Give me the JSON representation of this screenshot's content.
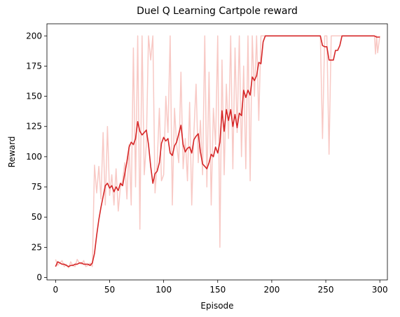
{
  "chart_data": {
    "type": "line",
    "title": "Duel Q Learning Cartpole reward",
    "xlabel": "Episode",
    "ylabel": "Reward",
    "xlim": [
      -8,
      307
    ],
    "ylim": [
      -2,
      210
    ],
    "xticks": [
      0,
      50,
      100,
      150,
      200,
      250,
      300
    ],
    "yticks": [
      0,
      25,
      50,
      75,
      100,
      125,
      150,
      175,
      200
    ],
    "grid": false,
    "legend": "none",
    "series": [
      {
        "style": "raw",
        "color": "#f5b7b2",
        "x": [
          0,
          2,
          4,
          6,
          8,
          10,
          12,
          14,
          16,
          18,
          20,
          22,
          24,
          26,
          28,
          30,
          32,
          34,
          36,
          38,
          40,
          42,
          44,
          46,
          48,
          50,
          52,
          54,
          56,
          58,
          60,
          62,
          64,
          66,
          68,
          70,
          72,
          74,
          76,
          78,
          80,
          82,
          84,
          86,
          88,
          90,
          92,
          94,
          96,
          98,
          100,
          102,
          104,
          106,
          108,
          110,
          112,
          114,
          116,
          118,
          120,
          122,
          124,
          126,
          128,
          130,
          132,
          134,
          136,
          138,
          140,
          142,
          144,
          146,
          148,
          150,
          152,
          154,
          156,
          158,
          160,
          162,
          164,
          166,
          168,
          170,
          172,
          174,
          176,
          178,
          180,
          182,
          184,
          186,
          188,
          190,
          192,
          194,
          196,
          198,
          200,
          210,
          220,
          230,
          240,
          245,
          247,
          249,
          251,
          253,
          255,
          257,
          260,
          265,
          270,
          280,
          290,
          295,
          296,
          297,
          298,
          300
        ],
        "y": [
          15,
          10,
          12,
          14,
          9,
          11,
          8,
          13,
          10,
          9,
          15,
          12,
          11,
          14,
          9,
          10,
          12,
          9,
          93,
          70,
          92,
          65,
          120,
          60,
          125,
          68,
          85,
          60,
          90,
          55,
          75,
          80,
          95,
          65,
          110,
          60,
          190,
          75,
          200,
          40,
          200,
          85,
          110,
          200,
          180,
          200,
          70,
          95,
          140,
          80,
          85,
          150,
          120,
          200,
          60,
          140,
          110,
          95,
          170,
          90,
          115,
          80,
          145,
          60,
          120,
          160,
          95,
          130,
          85,
          200,
          75,
          170,
          60,
          140,
          110,
          200,
          25,
          180,
          85,
          160,
          115,
          200,
          90,
          190,
          120,
          200,
          100,
          175,
          90,
          200,
          80,
          200,
          150,
          200,
          130,
          200,
          200,
          200,
          200,
          200,
          200,
          200,
          200,
          200,
          200,
          200,
          115,
          200,
          200,
          102,
          200,
          200,
          200,
          200,
          200,
          200,
          200,
          200,
          185,
          200,
          186,
          200
        ]
      },
      {
        "style": "smoothed",
        "color": "#d62728",
        "x": [
          0,
          2,
          4,
          6,
          8,
          10,
          12,
          14,
          16,
          18,
          20,
          22,
          24,
          26,
          28,
          30,
          32,
          34,
          36,
          38,
          40,
          42,
          44,
          46,
          48,
          50,
          52,
          54,
          56,
          58,
          60,
          62,
          64,
          66,
          68,
          70,
          72,
          74,
          76,
          78,
          80,
          82,
          84,
          86,
          88,
          90,
          92,
          94,
          96,
          98,
          100,
          102,
          104,
          106,
          108,
          110,
          112,
          114,
          116,
          118,
          120,
          122,
          124,
          126,
          128,
          130,
          132,
          134,
          136,
          138,
          140,
          142,
          144,
          146,
          148,
          150,
          152,
          154,
          156,
          158,
          160,
          162,
          164,
          166,
          168,
          170,
          172,
          174,
          176,
          178,
          180,
          182,
          184,
          186,
          188,
          190,
          192,
          194,
          196,
          198,
          200,
          210,
          220,
          230,
          240,
          245,
          247,
          249,
          251,
          253,
          255,
          257,
          259,
          261,
          263,
          265,
          270,
          280,
          290,
          295,
          297,
          300
        ],
        "y": [
          9,
          13,
          12,
          11,
          11,
          10,
          9,
          10,
          10,
          11,
          11,
          12,
          12,
          11,
          11,
          11,
          10,
          12,
          20,
          35,
          48,
          58,
          67,
          76,
          78,
          74,
          76,
          71,
          75,
          72,
          78,
          76,
          86,
          96,
          108,
          112,
          110,
          115,
          129,
          121,
          118,
          120,
          122,
          110,
          92,
          78,
          86,
          88,
          95,
          111,
          116,
          113,
          115,
          103,
          101,
          109,
          112,
          119,
          126,
          110,
          104,
          107,
          108,
          103,
          114,
          117,
          119,
          104,
          94,
          92,
          90,
          95,
          102,
          100,
          108,
          103,
          112,
          138,
          121,
          139,
          130,
          139,
          125,
          135,
          124,
          136,
          134,
          155,
          149,
          155,
          151,
          166,
          163,
          167,
          178,
          177,
          195,
          200,
          200,
          200,
          200,
          200,
          200,
          200,
          200,
          200,
          192,
          191,
          191,
          180,
          180,
          180,
          188,
          188,
          192,
          200,
          200,
          200,
          200,
          200,
          199,
          199
        ]
      }
    ]
  }
}
